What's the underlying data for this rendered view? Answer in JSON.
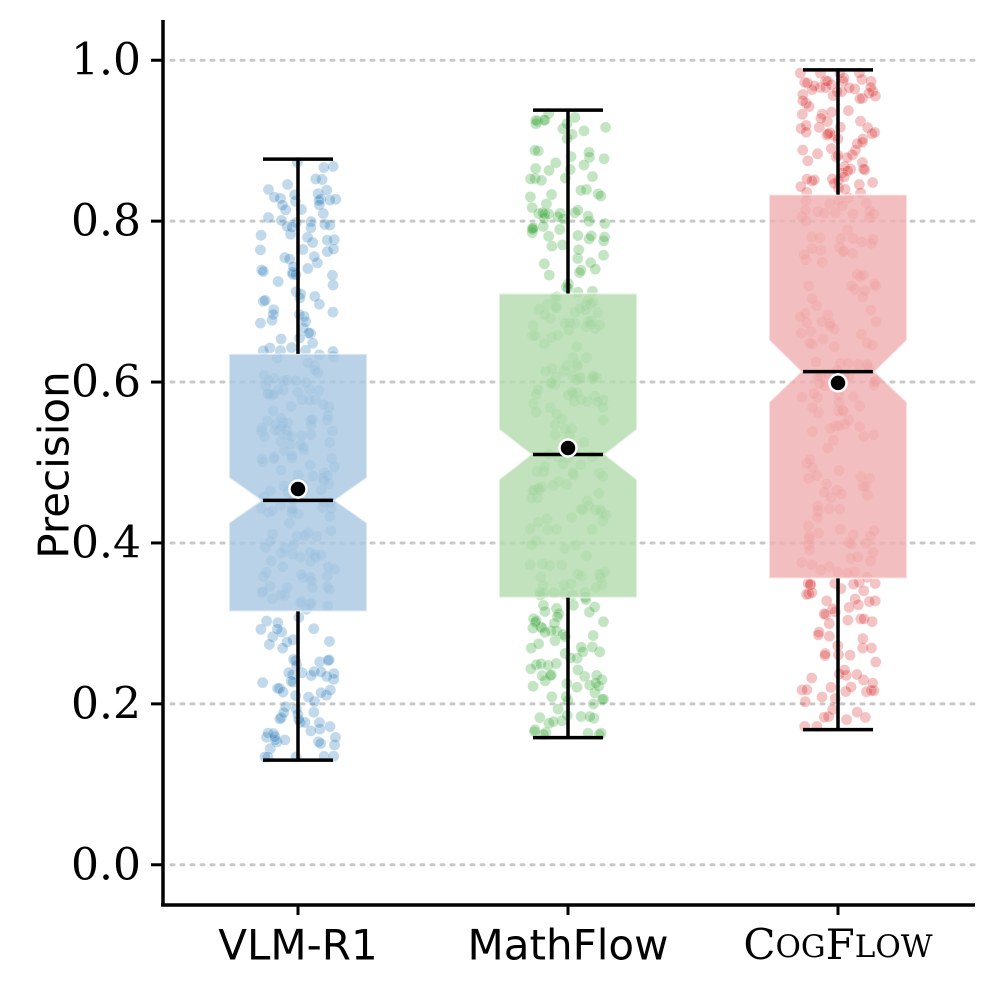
{
  "chart_data": {
    "type": "box",
    "title": "",
    "xlabel": "",
    "ylabel": "Precision",
    "ylim": [
      -0.05,
      1.05
    ],
    "yticks": [
      "0.0",
      "0.2",
      "0.4",
      "0.6",
      "0.8",
      "1.0"
    ],
    "grid": "horizontal-dotted",
    "series": [
      {
        "name": "VLM-R1",
        "label_style": "sans",
        "color": "#1f77b4",
        "box_color": "#a9c8e3",
        "min": 0.13,
        "q1": 0.315,
        "median": 0.453,
        "q3": 0.635,
        "max": 0.877,
        "mean": 0.467,
        "notch_low": 0.44,
        "notch_high": 0.466
      },
      {
        "name": "MathFlow",
        "label_style": "sans",
        "color": "#2ca02c",
        "box_color": "#b3dcaf",
        "min": 0.158,
        "q1": 0.332,
        "median": 0.51,
        "q3": 0.71,
        "max": 0.938,
        "mean": 0.518,
        "notch_low": 0.494,
        "notch_high": 0.526
      },
      {
        "name": "COGFLOW",
        "label_style": "smallcaps",
        "label_parts": [
          {
            "text": "C",
            "big": true
          },
          {
            "text": "OG",
            "big": false
          },
          {
            "text": "F",
            "big": true
          },
          {
            "text": "LOW",
            "big": false
          }
        ],
        "color": "#d62728",
        "box_color": "#f0b0b1",
        "min": 0.168,
        "q1": 0.356,
        "median": 0.613,
        "q3": 0.833,
        "max": 0.988,
        "mean": 0.599,
        "notch_low": 0.59,
        "notch_high": 0.637
      }
    ]
  }
}
